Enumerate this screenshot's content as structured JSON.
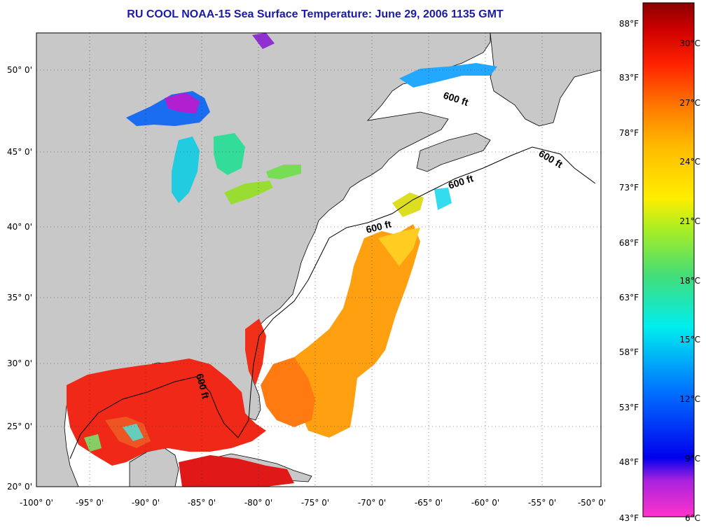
{
  "title": "RU COOL  NOAA-15  Sea Surface Temperature:  June 29, 2006 1135 GMT",
  "map": {
    "lon_ticks": [
      "-100° 0'",
      "-95° 0'",
      "-90° 0'",
      "-85° 0'",
      "-80° 0'",
      "-75° 0'",
      "-70° 0'",
      "-65° 0'",
      "-60° 0'",
      "-55° 0'",
      "-50° 0'"
    ],
    "lat_ticks": [
      "50° 0'",
      "45° 0'",
      "40° 0'",
      "35° 0'",
      "30° 0'",
      "25° 0'",
      "20° 0'"
    ],
    "isobath_labels": [
      "600 ft",
      "600 ft",
      "600 ft",
      "600 ft",
      "600 ft"
    ]
  },
  "colorbar": {
    "fahrenheit": [
      "88°F",
      "83°F",
      "78°F",
      "73°F",
      "68°F",
      "63°F",
      "58°F",
      "53°F",
      "48°F",
      "43°F"
    ],
    "celsius": [
      "30°C",
      "27°C",
      "24°C",
      "21°C",
      "18°C",
      "15°C",
      "12°C",
      "9°C",
      "6°C"
    ],
    "colors": [
      "#ff33cc",
      "#8822cc",
      "#0000ee",
      "#0088ff",
      "#00eeee",
      "#44dd66",
      "#ccee00",
      "#ffcc00",
      "#ff8800",
      "#ff2200",
      "#dd0000",
      "#990000"
    ]
  }
}
